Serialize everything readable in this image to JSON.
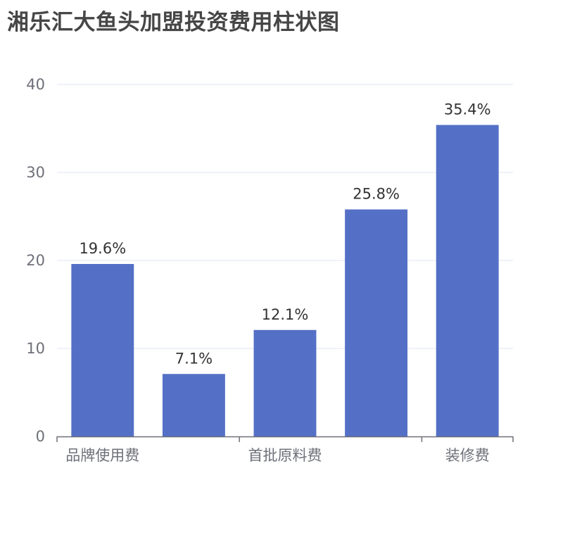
{
  "chart_data": {
    "type": "bar",
    "title": "湘乐汇大鱼头加盟投资费用柱状图",
    "categories": [
      "品牌使用费",
      "",
      "首批原料费",
      "",
      "装修费"
    ],
    "values": [
      19.6,
      7.1,
      12.1,
      25.8,
      35.4
    ],
    "data_labels": [
      "19.6%",
      "7.1%",
      "12.1%",
      "25.8%",
      "35.4%"
    ],
    "y_ticks": [
      "0",
      "10",
      "20",
      "30",
      "40"
    ],
    "ylim": [
      0,
      40
    ],
    "grid": true,
    "bar_color": "#5470c6",
    "legend": "none"
  }
}
